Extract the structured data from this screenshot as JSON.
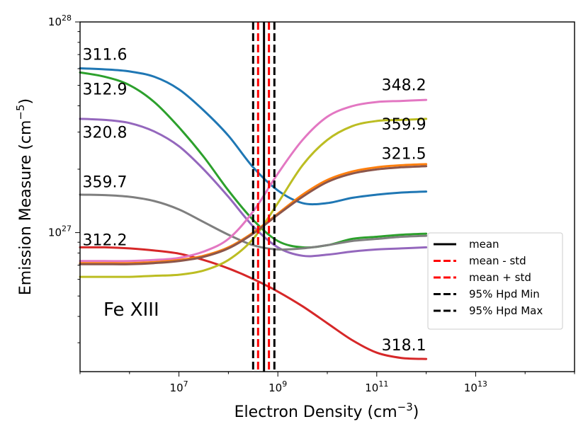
{
  "chart_data": {
    "type": "line",
    "title": "",
    "xlabel": "Electron Density (cm",
    "xlabel_exp": "−3",
    "xlabel_close": ")",
    "ylabel": "Emission Measure (cm",
    "ylabel_exp": "−5",
    "ylabel_close": ")",
    "x_scale": "log",
    "y_scale": "log",
    "xlim_log10": [
      5.0,
      15.0
    ],
    "ylim_log10": [
      26.34,
      28.0
    ],
    "x_ticks": [
      {
        "base": "10",
        "exp": "7",
        "log10": 7
      },
      {
        "base": "10",
        "exp": "9",
        "log10": 9
      },
      {
        "base": "10",
        "exp": "11",
        "log10": 11
      },
      {
        "base": "10",
        "exp": "13",
        "log10": 13
      }
    ],
    "y_ticks": [
      {
        "base": "10",
        "exp": "27",
        "log10": 27
      },
      {
        "base": "10",
        "exp": "28",
        "log10": 28
      }
    ],
    "annotation": "Fe XIII",
    "series": [
      {
        "name": "311.6",
        "color": "#1f77b4",
        "log_x": [
          5.0,
          5.5,
          6.0,
          6.5,
          7.0,
          7.5,
          8.0,
          8.5,
          9.0,
          9.5,
          10.0,
          10.5,
          11.0,
          11.5,
          12.0
        ],
        "log_y": [
          27.78,
          27.775,
          27.765,
          27.74,
          27.68,
          27.58,
          27.46,
          27.31,
          27.2,
          27.14,
          27.14,
          27.165,
          27.18,
          27.19,
          27.195
        ]
      },
      {
        "name": "312.9",
        "color": "#2ca02c",
        "log_x": [
          5.0,
          5.5,
          6.0,
          6.5,
          7.0,
          7.5,
          8.0,
          8.5,
          9.0,
          9.5,
          10.0,
          10.5,
          11.0,
          11.5,
          12.0
        ],
        "log_y": [
          27.76,
          27.74,
          27.7,
          27.62,
          27.5,
          27.36,
          27.2,
          27.06,
          26.96,
          26.93,
          26.94,
          26.97,
          26.98,
          26.99,
          26.995
        ]
      },
      {
        "name": "320.8",
        "color": "#9467bd",
        "log_x": [
          5.0,
          5.5,
          6.0,
          6.5,
          7.0,
          7.5,
          8.0,
          8.5,
          9.0,
          9.5,
          10.0,
          10.5,
          11.0,
          11.5,
          12.0
        ],
        "log_y": [
          27.54,
          27.535,
          27.52,
          27.48,
          27.41,
          27.3,
          27.17,
          27.03,
          26.93,
          26.89,
          26.895,
          26.91,
          26.92,
          26.925,
          26.93
        ]
      },
      {
        "name": "359.7",
        "color": "#7f7f7f",
        "log_x": [
          5.0,
          5.5,
          6.0,
          6.5,
          7.0,
          7.5,
          8.0,
          8.5,
          9.0,
          9.5,
          10.0,
          10.5,
          11.0,
          11.5,
          12.0
        ],
        "log_y": [
          27.18,
          27.178,
          27.17,
          27.15,
          27.11,
          27.05,
          26.99,
          26.94,
          26.92,
          26.925,
          26.94,
          26.96,
          26.97,
          26.98,
          26.985
        ]
      },
      {
        "name": "312.2",
        "color": "#d62728",
        "log_x": [
          5.0,
          5.5,
          6.0,
          6.5,
          7.0,
          7.5,
          8.0,
          8.5,
          9.0,
          9.5,
          10.0,
          10.5,
          11.0,
          11.5,
          12.0
        ],
        "log_y": [
          26.93,
          26.93,
          26.925,
          26.915,
          26.9,
          26.87,
          26.83,
          26.78,
          26.72,
          26.65,
          26.57,
          26.49,
          26.43,
          26.405,
          26.4
        ]
      },
      {
        "name": "348.2",
        "color": "#e377c2",
        "log_x": [
          5.0,
          5.5,
          6.0,
          6.5,
          7.0,
          7.5,
          8.0,
          8.5,
          9.0,
          9.5,
          10.0,
          10.5,
          11.0,
          11.5,
          12.0
        ],
        "log_y": [
          26.865,
          26.865,
          26.865,
          26.87,
          26.88,
          26.91,
          26.97,
          27.1,
          27.28,
          27.44,
          27.55,
          27.6,
          27.62,
          27.625,
          27.63
        ]
      },
      {
        "name": "359.9",
        "color": "#bcbd22",
        "log_x": [
          5.0,
          5.5,
          6.0,
          6.5,
          7.0,
          7.5,
          8.0,
          8.5,
          9.0,
          9.5,
          10.0,
          10.5,
          11.0,
          11.5,
          12.0
        ],
        "log_y": [
          26.79,
          26.79,
          26.79,
          26.795,
          26.8,
          26.82,
          26.87,
          26.97,
          27.14,
          27.32,
          27.44,
          27.505,
          27.53,
          27.535,
          27.54
        ]
      },
      {
        "name": "321.5",
        "color": "#ff7f0e",
        "log_x": [
          5.0,
          5.5,
          6.0,
          6.5,
          7.0,
          7.5,
          8.0,
          8.5,
          9.0,
          9.5,
          10.0,
          10.5,
          11.0,
          11.5,
          12.0
        ],
        "log_y": [
          26.855,
          26.855,
          26.855,
          26.86,
          26.87,
          26.89,
          26.93,
          27.0,
          27.09,
          27.18,
          27.25,
          27.29,
          27.31,
          27.32,
          27.325
        ]
      },
      {
        "name": "",
        "color": "#8c564b",
        "log_x": [
          5.0,
          5.5,
          6.0,
          6.5,
          7.0,
          7.5,
          8.0,
          8.5,
          9.0,
          9.5,
          10.0,
          10.5,
          11.0,
          11.5,
          12.0
        ],
        "log_y": [
          26.85,
          26.85,
          26.85,
          26.855,
          26.865,
          26.885,
          26.925,
          26.995,
          27.085,
          27.17,
          27.24,
          27.28,
          27.3,
          27.31,
          27.315
        ]
      }
    ],
    "line_labels": [
      {
        "text": "311.6",
        "log_x": 5.05,
        "log_y": 27.82,
        "anchor": "start"
      },
      {
        "text": "312.9",
        "log_x": 5.05,
        "log_y": 27.655,
        "anchor": "start"
      },
      {
        "text": "320.8",
        "log_x": 5.05,
        "log_y": 27.45,
        "anchor": "start"
      },
      {
        "text": "359.7",
        "log_x": 5.05,
        "log_y": 27.215,
        "anchor": "start"
      },
      {
        "text": "312.2",
        "log_x": 5.05,
        "log_y": 26.94,
        "anchor": "start"
      },
      {
        "text": "348.2",
        "log_x": 12.0,
        "log_y": 27.675,
        "anchor": "end"
      },
      {
        "text": "359.9",
        "log_x": 12.0,
        "log_y": 27.49,
        "anchor": "end"
      },
      {
        "text": "321.5",
        "log_x": 12.0,
        "log_y": 27.35,
        "anchor": "end"
      },
      {
        "text": "318.1",
        "log_x": 12.0,
        "log_y": 26.44,
        "anchor": "end"
      }
    ],
    "vlines": [
      {
        "name": "95% Hpd Min",
        "log_x": 8.5,
        "color": "#000000",
        "style": "dashed"
      },
      {
        "name": "mean - std",
        "log_x": 8.6,
        "color": "#ff0000",
        "style": "dashed"
      },
      {
        "name": "mean",
        "log_x": 8.72,
        "color": "#000000",
        "style": "solid"
      },
      {
        "name": "mean + std",
        "log_x": 8.82,
        "color": "#ff0000",
        "style": "dashed"
      },
      {
        "name": "95% Hpd Max",
        "log_x": 8.93,
        "color": "#000000",
        "style": "dashed"
      }
    ],
    "legend": {
      "placement": "lower-right",
      "entries": [
        {
          "label": "mean",
          "color": "#000000",
          "style": "solid"
        },
        {
          "label": "mean - std",
          "color": "#ff0000",
          "style": "dashed"
        },
        {
          "label": "mean + std",
          "color": "#ff0000",
          "style": "dashed"
        },
        {
          "label": "95% Hpd Min",
          "color": "#000000",
          "style": "dashed"
        },
        {
          "label": "95% Hpd Max",
          "color": "#000000",
          "style": "dashed"
        }
      ]
    }
  }
}
